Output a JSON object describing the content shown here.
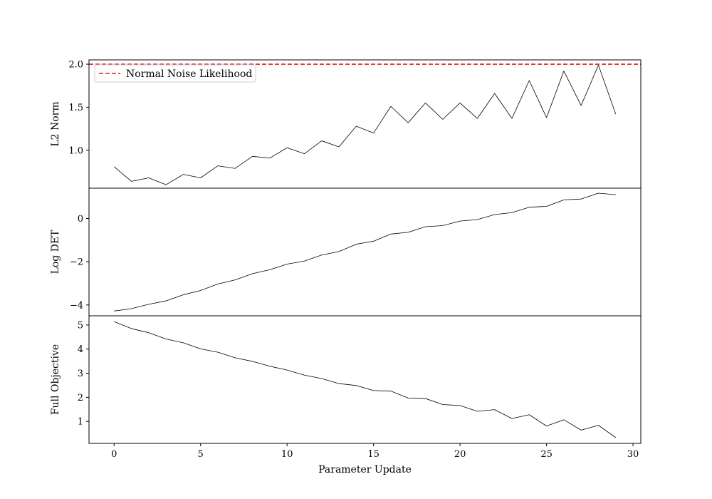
{
  "chart_data": [
    {
      "type": "line",
      "ylabel": "L2 Norm",
      "xlim": [
        -1.45,
        30.45
      ],
      "ylim": [
        0.56,
        2.05
      ],
      "yticks": [
        1.0,
        1.5,
        2.0
      ],
      "ytick_labels": [
        "1.0",
        "1.5",
        "2.0"
      ],
      "x": [
        0,
        1,
        2,
        3,
        4,
        5,
        6,
        7,
        8,
        9,
        10,
        11,
        12,
        13,
        14,
        15,
        16,
        17,
        18,
        19,
        20,
        21,
        22,
        23,
        24,
        25,
        26,
        27,
        28,
        29
      ],
      "series": [
        {
          "values": [
            0.81,
            0.64,
            0.68,
            0.6,
            0.72,
            0.68,
            0.82,
            0.79,
            0.93,
            0.91,
            1.03,
            0.96,
            1.11,
            1.04,
            1.28,
            1.2,
            1.51,
            1.32,
            1.55,
            1.36,
            1.55,
            1.37,
            1.66,
            1.37,
            1.81,
            1.38,
            1.92,
            1.52,
            1.99,
            1.42
          ],
          "color": "#000000"
        }
      ],
      "hline": {
        "y": 2.0,
        "color": "#e41a1c",
        "style": "dashed",
        "label": "Normal Noise Likelihood"
      },
      "legend": {
        "placement": "upper-left",
        "entries": [
          "Normal Noise Likelihood"
        ]
      },
      "grid": false
    },
    {
      "type": "line",
      "ylabel": "Log DET",
      "xlim": [
        -1.45,
        30.45
      ],
      "ylim": [
        -4.5,
        1.4
      ],
      "yticks": [
        -4,
        -2,
        0
      ],
      "ytick_labels": [
        "−4",
        "−2",
        "0"
      ],
      "x": [
        0,
        1,
        2,
        3,
        4,
        5,
        6,
        7,
        8,
        9,
        10,
        11,
        12,
        13,
        14,
        15,
        16,
        17,
        18,
        19,
        20,
        21,
        22,
        23,
        24,
        25,
        26,
        27,
        28,
        29
      ],
      "series": [
        {
          "values": [
            -4.28,
            -4.17,
            -3.97,
            -3.81,
            -3.53,
            -3.33,
            -3.03,
            -2.84,
            -2.55,
            -2.37,
            -2.11,
            -1.97,
            -1.69,
            -1.53,
            -1.19,
            -1.05,
            -0.72,
            -0.64,
            -0.38,
            -0.33,
            -0.12,
            -0.05,
            0.18,
            0.27,
            0.52,
            0.56,
            0.86,
            0.9,
            1.17,
            1.1
          ],
          "color": "#000000"
        }
      ],
      "grid": false
    },
    {
      "type": "line",
      "ylabel": "Full Objective",
      "xlabel": "Parameter Update",
      "xlim": [
        -1.45,
        30.45
      ],
      "ylim": [
        0.09,
        5.38
      ],
      "yticks": [
        1,
        2,
        3,
        4,
        5
      ],
      "ytick_labels": [
        "1",
        "2",
        "3",
        "4",
        "5"
      ],
      "xticks": [
        0,
        5,
        10,
        15,
        20,
        25,
        30
      ],
      "xtick_labels": [
        "0",
        "5",
        "10",
        "15",
        "20",
        "25",
        "30"
      ],
      "x": [
        0,
        1,
        2,
        3,
        4,
        5,
        6,
        7,
        8,
        9,
        10,
        11,
        12,
        13,
        14,
        15,
        16,
        17,
        18,
        19,
        20,
        21,
        22,
        23,
        24,
        25,
        26,
        27,
        28,
        29
      ],
      "series": [
        {
          "values": [
            5.14,
            4.85,
            4.68,
            4.42,
            4.26,
            4.01,
            3.87,
            3.64,
            3.49,
            3.29,
            3.13,
            2.92,
            2.78,
            2.57,
            2.49,
            2.28,
            2.26,
            1.97,
            1.95,
            1.7,
            1.66,
            1.42,
            1.49,
            1.12,
            1.28,
            0.81,
            1.07,
            0.64,
            0.84,
            0.33
          ],
          "color": "#000000"
        }
      ],
      "grid": false
    }
  ]
}
